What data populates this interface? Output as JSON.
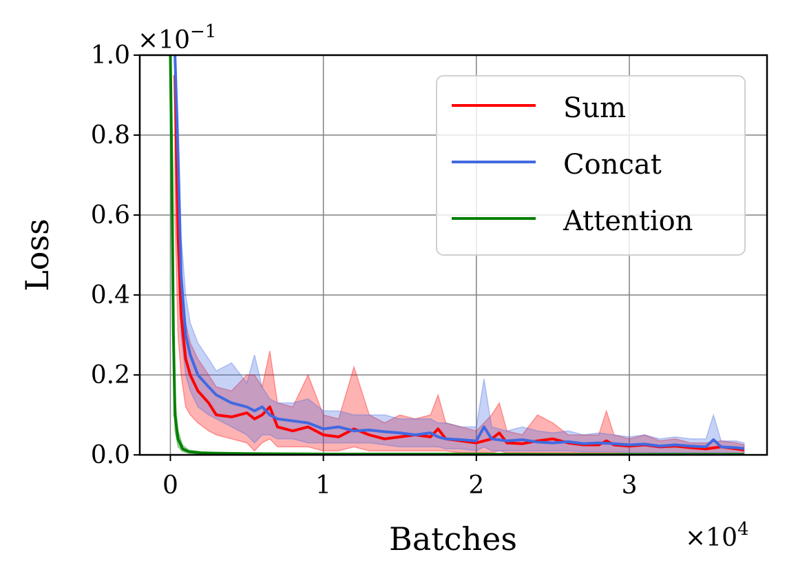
{
  "chart_data": {
    "type": "line",
    "xlabel": "Batches",
    "ylabel": "Loss",
    "x_multiplier": "×10",
    "x_multiplier_exp": "4",
    "y_multiplier": "×10",
    "y_multiplier_exp": "−1",
    "xlim": [
      -0.2,
      3.9
    ],
    "ylim": [
      0.0,
      1.0
    ],
    "xticks": [
      0,
      1,
      2,
      3
    ],
    "xtick_labels": [
      "0",
      "1",
      "2",
      "3"
    ],
    "yticks": [
      0.0,
      0.2,
      0.4,
      0.6,
      0.8,
      1.0
    ],
    "ytick_labels": [
      "0.0",
      "0.2",
      "0.4",
      "0.6",
      "0.8",
      "1.0"
    ],
    "grid": true,
    "legend_position": "top-right",
    "series": [
      {
        "name": "Sum",
        "color": "#ff0000",
        "band_color": "#ff0000",
        "x": [
          0.03,
          0.05,
          0.07,
          0.1,
          0.13,
          0.18,
          0.25,
          0.3,
          0.4,
          0.5,
          0.55,
          0.6,
          0.65,
          0.7,
          0.8,
          0.9,
          1.0,
          1.1,
          1.2,
          1.3,
          1.4,
          1.5,
          1.6,
          1.7,
          1.75,
          1.8,
          1.9,
          2.0,
          2.1,
          2.15,
          2.2,
          2.3,
          2.4,
          2.5,
          2.6,
          2.7,
          2.8,
          2.85,
          2.9,
          3.0,
          3.1,
          3.2,
          3.3,
          3.4,
          3.5,
          3.6,
          3.7,
          3.75
        ],
        "values": [
          0.95,
          0.55,
          0.35,
          0.24,
          0.2,
          0.16,
          0.13,
          0.1,
          0.095,
          0.105,
          0.09,
          0.1,
          0.12,
          0.07,
          0.06,
          0.07,
          0.05,
          0.045,
          0.065,
          0.05,
          0.04,
          0.045,
          0.05,
          0.045,
          0.065,
          0.04,
          0.035,
          0.03,
          0.04,
          0.055,
          0.03,
          0.028,
          0.035,
          0.04,
          0.03,
          0.025,
          0.025,
          0.035,
          0.025,
          0.022,
          0.025,
          0.02,
          0.022,
          0.018,
          0.015,
          0.02,
          0.015,
          0.012
        ],
        "upper": [
          1.0,
          0.7,
          0.45,
          0.33,
          0.28,
          0.24,
          0.2,
          0.17,
          0.16,
          0.2,
          0.2,
          0.17,
          0.26,
          0.13,
          0.12,
          0.2,
          0.1,
          0.09,
          0.22,
          0.1,
          0.08,
          0.1,
          0.09,
          0.1,
          0.15,
          0.08,
          0.07,
          0.06,
          0.1,
          0.13,
          0.06,
          0.05,
          0.1,
          0.08,
          0.05,
          0.05,
          0.05,
          0.11,
          0.05,
          0.04,
          0.05,
          0.035,
          0.04,
          0.03,
          0.03,
          0.035,
          0.03,
          0.025
        ],
        "lower": [
          0.6,
          0.3,
          0.2,
          0.12,
          0.1,
          0.08,
          0.06,
          0.05,
          0.04,
          0.03,
          0.01,
          0.03,
          0.04,
          0.02,
          0.02,
          0.02,
          0.01,
          0.01,
          0.02,
          0.01,
          0.01,
          0.01,
          0.01,
          0.01,
          0.01,
          0.01,
          0.005,
          0.005,
          0.005,
          0.01,
          0.005,
          0.005,
          0.005,
          0.005,
          0.005,
          0.005,
          0.005,
          0.005,
          0.005,
          0.003,
          0.003,
          0.003,
          0.003,
          0.003,
          0.003,
          0.003,
          0.003,
          0.003
        ]
      },
      {
        "name": "Concat",
        "color": "#4169e1",
        "band_color": "#4169e1",
        "x": [
          0.03,
          0.05,
          0.07,
          0.1,
          0.13,
          0.18,
          0.25,
          0.3,
          0.4,
          0.5,
          0.55,
          0.6,
          0.65,
          0.7,
          0.8,
          0.9,
          1.0,
          1.1,
          1.2,
          1.3,
          1.4,
          1.5,
          1.6,
          1.7,
          1.75,
          1.8,
          1.9,
          2.0,
          2.05,
          2.1,
          2.2,
          2.3,
          2.4,
          2.5,
          2.6,
          2.7,
          2.8,
          2.9,
          3.0,
          3.1,
          3.2,
          3.3,
          3.4,
          3.5,
          3.55,
          3.6,
          3.7,
          3.75
        ],
        "values": [
          1.0,
          0.75,
          0.45,
          0.3,
          0.25,
          0.2,
          0.17,
          0.15,
          0.13,
          0.12,
          0.11,
          0.12,
          0.1,
          0.09,
          0.085,
          0.08,
          0.065,
          0.07,
          0.06,
          0.062,
          0.058,
          0.055,
          0.05,
          0.055,
          0.045,
          0.04,
          0.038,
          0.035,
          0.07,
          0.04,
          0.035,
          0.038,
          0.032,
          0.03,
          0.033,
          0.028,
          0.03,
          0.028,
          0.025,
          0.027,
          0.022,
          0.025,
          0.022,
          0.02,
          0.038,
          0.02,
          0.018,
          0.016
        ],
        "upper": [
          1.0,
          0.85,
          0.55,
          0.4,
          0.33,
          0.28,
          0.24,
          0.21,
          0.23,
          0.18,
          0.25,
          0.17,
          0.14,
          0.13,
          0.13,
          0.14,
          0.11,
          0.11,
          0.1,
          0.1,
          0.1,
          0.09,
          0.09,
          0.09,
          0.08,
          0.08,
          0.07,
          0.07,
          0.19,
          0.07,
          0.06,
          0.07,
          0.06,
          0.055,
          0.06,
          0.05,
          0.055,
          0.05,
          0.045,
          0.05,
          0.04,
          0.045,
          0.04,
          0.04,
          0.1,
          0.035,
          0.035,
          0.03
        ],
        "lower": [
          0.8,
          0.5,
          0.3,
          0.2,
          0.16,
          0.12,
          0.1,
          0.09,
          0.07,
          0.05,
          0.03,
          0.05,
          0.05,
          0.04,
          0.04,
          0.03,
          0.03,
          0.03,
          0.03,
          0.03,
          0.025,
          0.02,
          0.02,
          0.02,
          0.02,
          0.015,
          0.015,
          0.01,
          0.02,
          0.01,
          0.01,
          0.01,
          0.01,
          0.01,
          0.01,
          0.008,
          0.008,
          0.008,
          0.006,
          0.006,
          0.005,
          0.005,
          0.005,
          0.005,
          0.005,
          0.005,
          0.004,
          0.004
        ]
      },
      {
        "name": "Attention",
        "color": "#008000",
        "band_color": "#008000",
        "x": [
          0.0,
          0.01,
          0.02,
          0.03,
          0.05,
          0.08,
          0.12,
          0.2,
          0.3,
          0.5,
          1.0,
          1.5,
          2.0,
          2.5,
          3.0,
          3.5,
          3.75
        ],
        "values": [
          1.0,
          0.7,
          0.3,
          0.1,
          0.04,
          0.015,
          0.008,
          0.005,
          0.004,
          0.003,
          0.002,
          0.002,
          0.002,
          0.001,
          0.001,
          0.001,
          0.001
        ],
        "upper": [
          1.0,
          0.8,
          0.4,
          0.15,
          0.06,
          0.025,
          0.012,
          0.008,
          0.006,
          0.005,
          0.004,
          0.003,
          0.003,
          0.002,
          0.002,
          0.002,
          0.002
        ],
        "lower": [
          1.0,
          0.6,
          0.2,
          0.06,
          0.02,
          0.008,
          0.004,
          0.002,
          0.002,
          0.001,
          0.001,
          0.001,
          0.001,
          0.0005,
          0.0005,
          0.0005,
          0.0005
        ]
      }
    ]
  }
}
